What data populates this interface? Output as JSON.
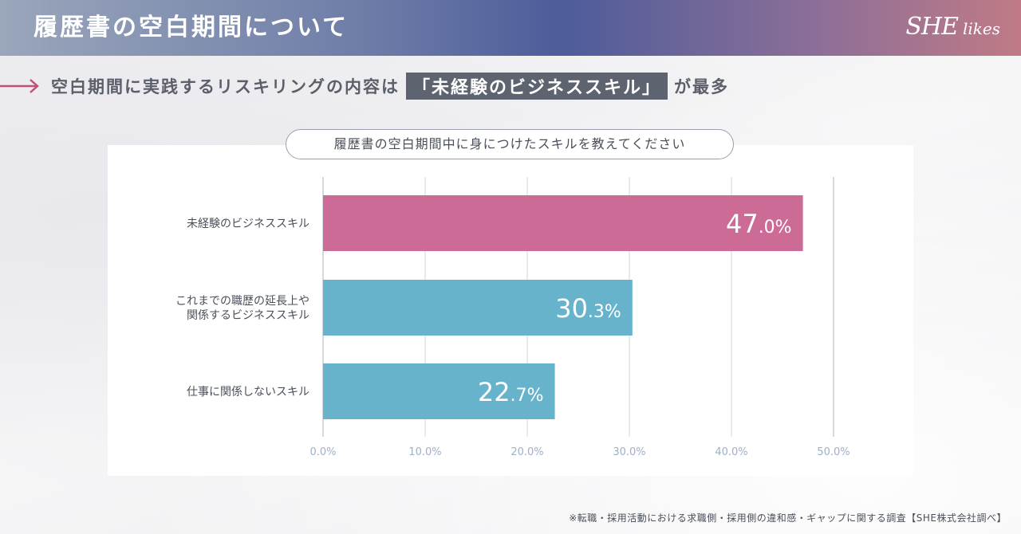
{
  "header": {
    "title": "履歴書の空白期間について",
    "logo_she": "SHE",
    "logo_likes": "likes"
  },
  "subhead": {
    "before": "空白期間に実践するリスキリングの内容は",
    "highlight": "「未経験のビジネススキル」",
    "after": "が最多"
  },
  "question": "履歴書の空白期間中に身につけたスキルを教えてください",
  "footnote": "※転職・採用活動における求職側・採用側の違和感・ギャップに関する調査【SHE株式会社調べ】",
  "colors": {
    "highlight_bar": "#cc6b96",
    "other_bar": "#68b3cc",
    "arrow": "#c24f7c",
    "grid": "#d9dbe0",
    "axis_label": "#9fb0c6",
    "category_label": "#4a4f5a"
  },
  "chart_data": {
    "type": "bar",
    "orientation": "horizontal",
    "categories": [
      [
        "未経験のビジネススキル"
      ],
      [
        "これまでの職歴の延長上や",
        "関係するビジネススキル"
      ],
      [
        "仕事に関係しないスキル"
      ]
    ],
    "values": [
      47.0,
      30.3,
      22.7
    ],
    "value_labels": [
      {
        "int": "47",
        "dec": ".0%"
      },
      {
        "int": "30",
        "dec": ".3%"
      },
      {
        "int": "22",
        "dec": ".7%"
      }
    ],
    "xlim": [
      0,
      50
    ],
    "xticks": [
      0,
      10,
      20,
      30,
      40,
      50
    ],
    "xtick_labels": [
      "0.0%",
      "10.0%",
      "20.0%",
      "30.0%",
      "40.0%",
      "50.0%"
    ],
    "grid": true,
    "title": "",
    "xlabel": "",
    "ylabel": ""
  }
}
